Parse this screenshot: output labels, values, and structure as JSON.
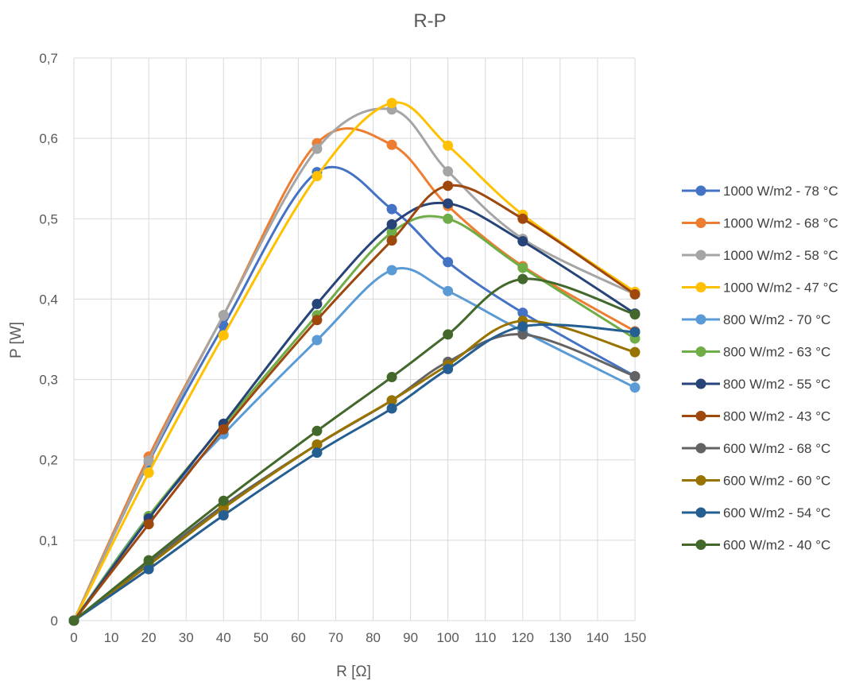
{
  "chart_data": {
    "type": "line",
    "smooth": true,
    "title": "R-P",
    "xlabel": "R [Ω]",
    "ylabel": "P [W]",
    "xlim": [
      0,
      150
    ],
    "ylim": [
      0,
      0.7
    ],
    "x_ticks": [
      "0",
      "10",
      "20",
      "30",
      "40",
      "50",
      "60",
      "70",
      "80",
      "90",
      "100",
      "110",
      "120",
      "130",
      "140",
      "150"
    ],
    "y_ticks": [
      "0",
      "0,1",
      "0,2",
      "0,3",
      "0,4",
      "0,5",
      "0,6",
      "0,7"
    ],
    "grid": true,
    "legend_position": "right",
    "x": [
      0,
      20,
      40,
      65,
      85,
      100,
      120,
      150
    ],
    "series": [
      {
        "name": "1000 W/m2 - 78 °C",
        "color": "#4472C4",
        "values": [
          0,
          0.197,
          0.367,
          0.558,
          0.512,
          0.446,
          0.383,
          0.304
        ]
      },
      {
        "name": "1000 W/m2 - 68 °C",
        "color": "#ED7D31",
        "values": [
          0,
          0.204,
          0.38,
          0.594,
          0.592,
          0.516,
          0.441,
          0.36
        ]
      },
      {
        "name": "1000 W/m2 - 58 °C",
        "color": "#A5A5A5",
        "values": [
          0,
          0.199,
          0.38,
          0.587,
          0.636,
          0.559,
          0.475,
          0.406
        ]
      },
      {
        "name": "1000 W/m2 - 47 °C",
        "color": "#FFC000",
        "values": [
          0,
          0.184,
          0.355,
          0.553,
          0.644,
          0.591,
          0.505,
          0.409
        ]
      },
      {
        "name": "800 W/m2 - 70 °C",
        "color": "#5B9BD5",
        "values": [
          0,
          0.13,
          0.232,
          0.349,
          0.436,
          0.41,
          0.36,
          0.29
        ]
      },
      {
        "name": "800 W/m2 - 63 °C",
        "color": "#70AD47",
        "values": [
          0,
          0.13,
          0.243,
          0.38,
          0.483,
          0.5,
          0.439,
          0.351
        ]
      },
      {
        "name": "800 W/m2 - 55 °C",
        "color": "#264478",
        "values": [
          0,
          0.127,
          0.245,
          0.394,
          0.493,
          0.519,
          0.472,
          0.382
        ]
      },
      {
        "name": "800 W/m2 - 43 °C",
        "color": "#9E480E",
        "values": [
          0,
          0.12,
          0.238,
          0.374,
          0.473,
          0.541,
          0.5,
          0.406
        ]
      },
      {
        "name": "600 W/m2 - 68 °C",
        "color": "#636363",
        "values": [
          0,
          0.072,
          0.143,
          0.219,
          0.274,
          0.322,
          0.356,
          0.304
        ]
      },
      {
        "name": "600 W/m2 - 60 °C",
        "color": "#997300",
        "values": [
          0,
          0.069,
          0.14,
          0.219,
          0.274,
          0.318,
          0.373,
          0.334
        ]
      },
      {
        "name": "600 W/m2 - 54 °C",
        "color": "#255E91",
        "values": [
          0,
          0.064,
          0.131,
          0.209,
          0.264,
          0.313,
          0.366,
          0.359
        ]
      },
      {
        "name": "600 W/m2 - 40 °C",
        "color": "#43682B",
        "values": [
          0,
          0.075,
          0.149,
          0.236,
          0.303,
          0.356,
          0.425,
          0.381
        ]
      }
    ]
  }
}
